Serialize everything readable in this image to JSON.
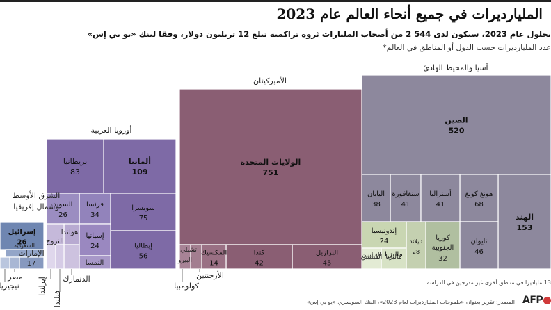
{
  "header": {
    "title": "المليارديرات في جميع أنحاء العالم عام 2023",
    "subtitle": "بحلول عام 2023، سيكون لدى 544 2 من أصحاب المليارات ثروة تراكمية تبلغ 12 تريليون دولار، وفقا لبنك «يو بي إس»",
    "subtitle2": "عدد المليارديرات حسب الدول أو المناطق في العالم*"
  },
  "footer": {
    "footnote": "13 ملياديرا في مناطق أخرى غير مدرجين في الدراسة",
    "source": "المصدر: تقرير بعنوان «طموحات المليارديرات لعام 2023»، البنك السويسري «يو بي إس»",
    "logo": "AFP"
  },
  "chart_data": {
    "type": "treemap",
    "colors": {
      "asia": "#8d889d",
      "asia_small": "#b5c39a",
      "americas": "#8a5e73",
      "europe": "#7e6aa6",
      "mideast": "#6f86b1"
    },
    "regions": [
      {
        "name": "آسيا والمحيط الهادئ",
        "items": [
          {
            "name": "الصين",
            "value": 520
          },
          {
            "name": "الهند",
            "value": 153
          },
          {
            "name": "هونغ كونغ",
            "value": 68
          },
          {
            "name": "تايوان",
            "value": 46
          },
          {
            "name": "سنغافورة",
            "value": 41
          },
          {
            "name": "أستراليا",
            "value": 41
          },
          {
            "name": "اليابان",
            "value": 38
          },
          {
            "name": "كوريا الجنوبية",
            "value": 32
          },
          {
            "name": "تايلاند",
            "value": 28
          },
          {
            "name": "إندونيسيا",
            "value": 24
          },
          {
            "name": "ماليزيا",
            "value": null
          },
          {
            "name": "الفيليبين",
            "value": null
          }
        ]
      },
      {
        "name": "الأميركيتان",
        "items": [
          {
            "name": "الولايات المتحدة",
            "value": 751
          },
          {
            "name": "البرازيل",
            "value": 45
          },
          {
            "name": "كندا",
            "value": 42
          },
          {
            "name": "المكسيك",
            "value": 14
          },
          {
            "name": "تشيلي",
            "value": null
          },
          {
            "name": "البيرو",
            "value": null
          },
          {
            "name": "الأرجنتين",
            "value": null
          },
          {
            "name": "كولومبيا",
            "value": null
          }
        ]
      },
      {
        "name": "أوروبا الغربية",
        "items": [
          {
            "name": "ألمانيا",
            "value": 109
          },
          {
            "name": "بريطانيا",
            "value": 83
          },
          {
            "name": "سويسرا",
            "value": 75
          },
          {
            "name": "إيطاليا",
            "value": 56
          },
          {
            "name": "فرنسا",
            "value": 34
          },
          {
            "name": "السويد",
            "value": 26
          },
          {
            "name": "إسبانيا",
            "value": 24
          },
          {
            "name": "هولندا",
            "value": null
          },
          {
            "name": "النروج",
            "value": null
          },
          {
            "name": "النمسا",
            "value": null
          },
          {
            "name": "الدنمارك",
            "value": null
          },
          {
            "name": "إيرلندا",
            "value": null
          },
          {
            "name": "فنلندا",
            "value": null
          }
        ]
      },
      {
        "name": "الشرق الأوسط وشمال إفريقيا",
        "items": [
          {
            "name": "إسرائيل",
            "value": 26
          },
          {
            "name": "الإمارات",
            "value": 17
          },
          {
            "name": "السعودية",
            "value": null
          },
          {
            "name": "مصر",
            "value": null
          },
          {
            "name": "نيجيريا",
            "value": null
          }
        ]
      }
    ]
  }
}
